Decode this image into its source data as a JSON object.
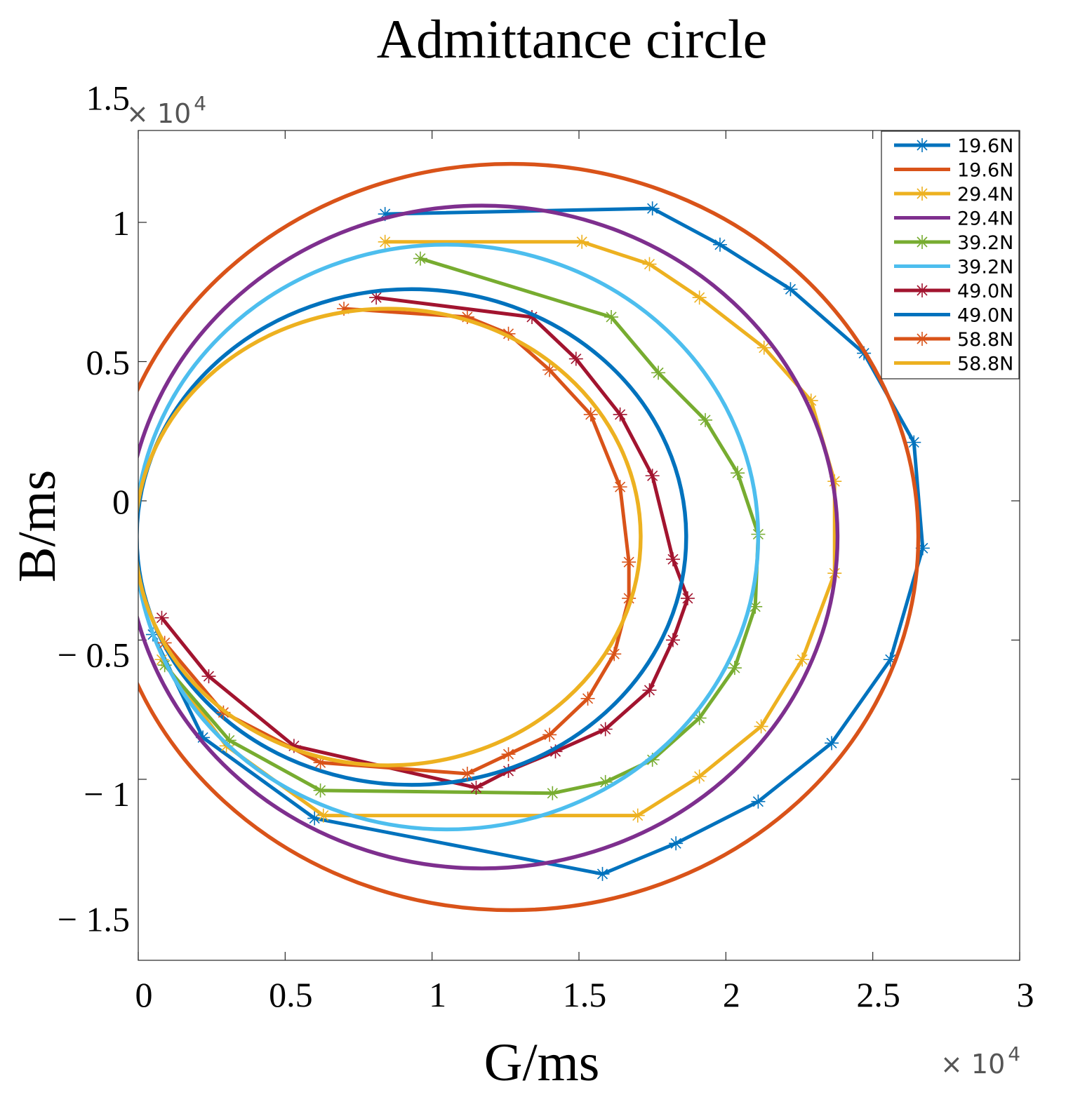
{
  "chart_data": {
    "type": "line",
    "title": "Admittance circle",
    "xlabel": "G/ms",
    "ylabel": "B/ms",
    "x_scale_label": "× 10",
    "y_scale_label": "× 10",
    "scale_exponent": "4",
    "xlim": [
      0,
      30000
    ],
    "ylim": [
      -16500,
      13300
    ],
    "x_ticks": [
      0,
      5000,
      10000,
      15000,
      20000,
      25000,
      30000
    ],
    "x_tick_labels": [
      "0",
      "0.5",
      "1",
      "1.5",
      "2",
      "2.5",
      "3"
    ],
    "y_ticks": [
      15000,
      10000,
      5000,
      0,
      -5000,
      -10000,
      -15000
    ],
    "y_tick_labels": [
      "1.5",
      "1",
      "0.5",
      "0",
      "− 0.5",
      "− 1",
      "− 1.5"
    ],
    "y_tick_label_values": [
      14500,
      10000,
      5000,
      0,
      -5500,
      -10500,
      -15000
    ],
    "y_tick_mark_values": [
      10000,
      5000,
      0,
      -5000,
      -10000
    ],
    "grid": false,
    "legend_position": "top-right",
    "series": [
      {
        "name": "19.6N",
        "color": "#0072BD",
        "marker": "asterisk",
        "style": "polyline",
        "points": [
          [
            8400,
            10300
          ],
          [
            17500,
            10500
          ],
          [
            19800,
            9200
          ],
          [
            22200,
            7600
          ],
          [
            24700,
            5300
          ],
          [
            26400,
            2100
          ],
          [
            26700,
            -1700
          ],
          [
            25600,
            -5700
          ],
          [
            23600,
            -8700
          ],
          [
            21100,
            -10800
          ],
          [
            18300,
            -12300
          ],
          [
            15800,
            -13400
          ],
          [
            6000,
            -11400
          ],
          [
            2200,
            -8500
          ],
          [
            500,
            -4800
          ]
        ]
      },
      {
        "name": "19.6N",
        "color": "#D95319",
        "marker": "none",
        "style": "circle",
        "center": [
          12700,
          -1300
        ],
        "rx": 13850,
        "ry": 13400
      },
      {
        "name": "29.4N",
        "color": "#EDB120",
        "marker": "asterisk",
        "style": "polyline",
        "points": [
          [
            8400,
            9300
          ],
          [
            15100,
            9300
          ],
          [
            17400,
            8500
          ],
          [
            19100,
            7300
          ],
          [
            21300,
            5500
          ],
          [
            22900,
            3600
          ],
          [
            23700,
            700
          ],
          [
            23700,
            -2600
          ],
          [
            22600,
            -5700
          ],
          [
            21200,
            -8100
          ],
          [
            19100,
            -9900
          ],
          [
            17000,
            -11300
          ],
          [
            6300,
            -11300
          ],
          [
            3000,
            -8800
          ],
          [
            800,
            -5700
          ]
        ]
      },
      {
        "name": "29.4N",
        "color": "#7E2F8E",
        "marker": "none",
        "style": "circle",
        "center": [
          11700,
          -1300
        ],
        "rx": 12100,
        "ry": 11900
      },
      {
        "name": "39.2N",
        "color": "#77AC30",
        "marker": "asterisk",
        "style": "polyline",
        "points": [
          [
            9600,
            8700
          ],
          [
            16100,
            6600
          ],
          [
            17700,
            4600
          ],
          [
            19300,
            2900
          ],
          [
            20400,
            1000
          ],
          [
            21100,
            -1200
          ],
          [
            21000,
            -3800
          ],
          [
            20300,
            -6000
          ],
          [
            19100,
            -7800
          ],
          [
            17500,
            -9300
          ],
          [
            15900,
            -10100
          ],
          [
            14100,
            -10500
          ],
          [
            6200,
            -10400
          ],
          [
            3100,
            -8600
          ],
          [
            900,
            -5900
          ]
        ]
      },
      {
        "name": "39.2N",
        "color": "#4DBEEE",
        "marker": "none",
        "style": "circle",
        "center": [
          10500,
          -1300
        ],
        "rx": 10600,
        "ry": 10500
      },
      {
        "name": "49.0N",
        "color": "#A2142F",
        "marker": "asterisk",
        "style": "polyline",
        "points": [
          [
            8100,
            7300
          ],
          [
            13400,
            6600
          ],
          [
            14900,
            5100
          ],
          [
            16400,
            3100
          ],
          [
            17500,
            900
          ],
          [
            18200,
            -2100
          ],
          [
            18700,
            -3500
          ],
          [
            18200,
            -5000
          ],
          [
            17400,
            -6800
          ],
          [
            15900,
            -8200
          ],
          [
            14200,
            -9000
          ],
          [
            12600,
            -9700
          ],
          [
            11500,
            -10300
          ],
          [
            5300,
            -8800
          ],
          [
            2400,
            -6300
          ],
          [
            800,
            -4200
          ]
        ]
      },
      {
        "name": "49.0N",
        "color": "#0072BD",
        "marker": "none",
        "style": "circle",
        "center": [
          9300,
          -1300
        ],
        "rx": 9350,
        "ry": 8900
      },
      {
        "name": "58.8N",
        "color": "#D95319",
        "marker": "asterisk",
        "style": "polyline",
        "points": [
          [
            7000,
            6900
          ],
          [
            11200,
            6600
          ],
          [
            12600,
            6000
          ],
          [
            14000,
            4700
          ],
          [
            15400,
            3100
          ],
          [
            16400,
            500
          ],
          [
            16700,
            -2200
          ],
          [
            16700,
            -3500
          ],
          [
            16200,
            -5500
          ],
          [
            15300,
            -7100
          ],
          [
            14000,
            -8400
          ],
          [
            12600,
            -9100
          ],
          [
            11200,
            -9800
          ],
          [
            6200,
            -9400
          ],
          [
            2900,
            -7600
          ],
          [
            900,
            -5100
          ]
        ]
      },
      {
        "name": "58.8N",
        "color": "#EDB120",
        "marker": "none",
        "style": "circle",
        "center": [
          8500,
          -1300
        ],
        "rx": 8600,
        "ry": 8200
      }
    ]
  }
}
